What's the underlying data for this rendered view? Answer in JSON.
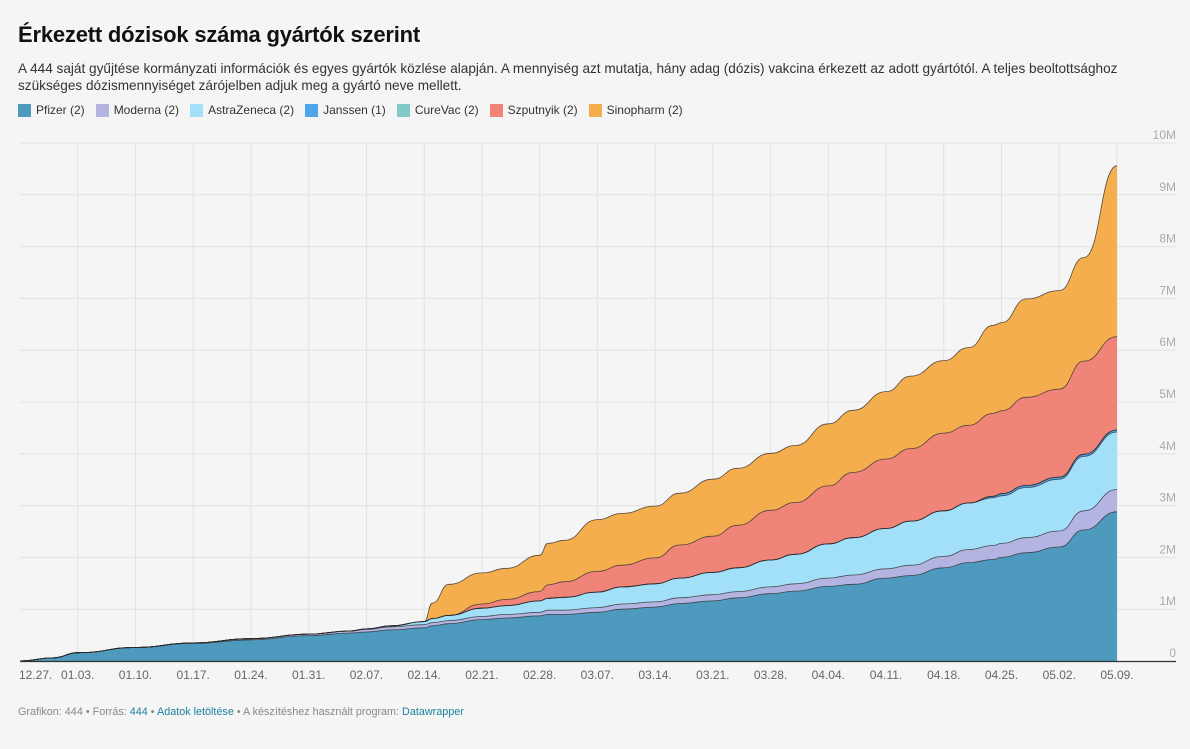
{
  "header": {
    "title": "Érkezett dózisok száma gyártók szerint",
    "subtitle": "A 444 saját gyűjtése kormányzati információk és egyes gyártók közlése alapján. A mennyiség azt mutatja, hány adag (dózis) vakcina érkezett az adott gyártótól. A teljes beoltottsághoz szükséges dózismennyiséget zárójelben adjuk meg a gyártó neve mellett."
  },
  "footer": {
    "prefix": "Grafikon: 444 • Forrás: ",
    "source": "444",
    "sep1": " • ",
    "download": "Adatok letöltése",
    "sep2": " • A készítéshez használt program: ",
    "tool": "Datawrapper"
  },
  "chart_data": {
    "type": "area",
    "stacked": true,
    "x_unit": "days since 12.27.",
    "x": [
      0,
      4,
      7,
      14,
      21,
      28,
      35,
      40,
      42,
      45,
      49,
      50,
      52,
      56,
      59,
      63,
      64,
      66,
      70,
      73,
      77,
      80,
      84,
      87,
      91,
      94,
      98,
      101,
      105,
      108,
      112,
      115,
      118,
      119,
      122,
      126,
      129,
      133
    ],
    "x_ticks": [
      {
        "day": 0,
        "label": "12.27."
      },
      {
        "day": 7,
        "label": "01.03."
      },
      {
        "day": 14,
        "label": "01.10."
      },
      {
        "day": 21,
        "label": "01.17."
      },
      {
        "day": 28,
        "label": "01.24."
      },
      {
        "day": 35,
        "label": "01.31."
      },
      {
        "day": 42,
        "label": "02.07."
      },
      {
        "day": 49,
        "label": "02.14."
      },
      {
        "day": 56,
        "label": "02.21."
      },
      {
        "day": 63,
        "label": "02.28."
      },
      {
        "day": 70,
        "label": "03.07."
      },
      {
        "day": 77,
        "label": "03.14."
      },
      {
        "day": 84,
        "label": "03.21."
      },
      {
        "day": 91,
        "label": "03.28."
      },
      {
        "day": 98,
        "label": "04.04."
      },
      {
        "day": 105,
        "label": "04.11."
      },
      {
        "day": 112,
        "label": "04.18."
      },
      {
        "day": 119,
        "label": "04.25."
      },
      {
        "day": 126,
        "label": "05.02."
      },
      {
        "day": 133,
        "label": "05.09."
      }
    ],
    "y_ticks": [
      {
        "value": 0,
        "label": "0"
      },
      {
        "value": 1000000,
        "label": "1M"
      },
      {
        "value": 2000000,
        "label": "2M"
      },
      {
        "value": 3000000,
        "label": "3M"
      },
      {
        "value": 4000000,
        "label": "4M"
      },
      {
        "value": 5000000,
        "label": "5M"
      },
      {
        "value": 6000000,
        "label": "6M"
      },
      {
        "value": 7000000,
        "label": "7M"
      },
      {
        "value": 8000000,
        "label": "8M"
      },
      {
        "value": 9000000,
        "label": "9M"
      },
      {
        "value": 10000000,
        "label": "10M"
      }
    ],
    "ylim": [
      0,
      10000000
    ],
    "grid": true,
    "legend_position": "top-left",
    "series": [
      {
        "name": "Pfizer (2)",
        "color": "#4e99be",
        "values": [
          0,
          60000,
          160000,
          260000,
          340000,
          410000,
          490000,
          540000,
          560000,
          600000,
          640000,
          680000,
          720000,
          800000,
          830000,
          870000,
          900000,
          900000,
          940000,
          1000000,
          1040000,
          1110000,
          1160000,
          1220000,
          1300000,
          1350000,
          1440000,
          1480000,
          1600000,
          1650000,
          1800000,
          1900000,
          1960000,
          2000000,
          2090000,
          2200000,
          2530000,
          2880000
        ]
      },
      {
        "name": "Moderna (2)",
        "color": "#b3b4e2",
        "values": [
          0,
          0,
          0,
          0,
          10000,
          20000,
          30000,
          40000,
          50000,
          60000,
          60000,
          60000,
          60000,
          60000,
          70000,
          70000,
          80000,
          80000,
          90000,
          100000,
          100000,
          110000,
          120000,
          120000,
          130000,
          140000,
          160000,
          180000,
          180000,
          200000,
          220000,
          250000,
          270000,
          270000,
          290000,
          310000,
          370000,
          430000
        ]
      },
      {
        "name": "AstraZeneca (2)",
        "color": "#a2e0fa",
        "values": [
          0,
          0,
          0,
          0,
          0,
          0,
          0,
          0,
          10000,
          20000,
          60000,
          80000,
          100000,
          160000,
          170000,
          220000,
          230000,
          250000,
          300000,
          330000,
          350000,
          380000,
          430000,
          460000,
          520000,
          570000,
          660000,
          720000,
          780000,
          850000,
          880000,
          900000,
          920000,
          920000,
          970000,
          1000000,
          1050000,
          1110000
        ]
      },
      {
        "name": "Janssen (1)",
        "color": "#4ea5e9",
        "values": [
          0,
          0,
          0,
          0,
          0,
          0,
          0,
          0,
          0,
          0,
          0,
          0,
          0,
          0,
          0,
          0,
          0,
          0,
          0,
          0,
          0,
          0,
          0,
          0,
          0,
          0,
          0,
          0,
          0,
          0,
          0,
          0,
          30000,
          40000,
          40000,
          40000,
          40000,
          40000
        ]
      },
      {
        "name": "CureVac (2)",
        "color": "#80cbc8",
        "values": [
          0,
          0,
          0,
          0,
          0,
          0,
          0,
          0,
          0,
          0,
          0,
          0,
          0,
          0,
          0,
          0,
          0,
          0,
          0,
          0,
          0,
          0,
          0,
          0,
          0,
          0,
          0,
          0,
          0,
          0,
          0,
          0,
          0,
          0,
          0,
          0,
          0,
          0
        ]
      },
      {
        "name": "Szputnyik (2)",
        "color": "#f08479",
        "values": [
          0,
          0,
          0,
          0,
          0,
          0,
          0,
          0,
          0,
          0,
          0,
          0,
          0,
          80000,
          120000,
          180000,
          260000,
          300000,
          400000,
          420000,
          500000,
          640000,
          700000,
          820000,
          960000,
          1000000,
          1120000,
          1260000,
          1340000,
          1400000,
          1500000,
          1500000,
          1600000,
          1600000,
          1700000,
          1700000,
          1800000,
          1800000
        ]
      },
      {
        "name": "Sinopharm (2)",
        "color": "#f5ae4e",
        "values": [
          0,
          0,
          0,
          0,
          0,
          0,
          0,
          0,
          0,
          0,
          0,
          300000,
          600000,
          600000,
          600000,
          700000,
          800000,
          800000,
          1000000,
          1000000,
          1000000,
          1000000,
          1100000,
          1100000,
          1100000,
          1100000,
          1200000,
          1200000,
          1300000,
          1400000,
          1400000,
          1500000,
          1700000,
          1700000,
          1900000,
          1900000,
          2000000,
          3300000
        ]
      }
    ]
  }
}
